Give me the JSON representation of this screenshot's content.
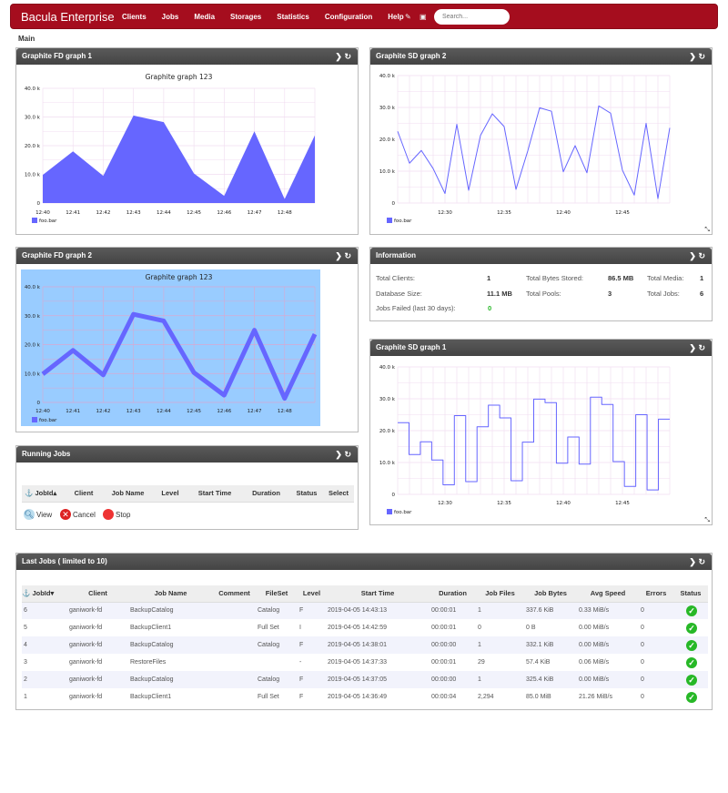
{
  "nav": {
    "brand": "Bacula Enterprise",
    "items": [
      "Clients",
      "Jobs",
      "Media",
      "Storages",
      "Statistics",
      "Configuration",
      "Help"
    ],
    "search_placeholder": "Search..."
  },
  "breadcrumb": "Main",
  "panels": {
    "fd1": "Graphite FD graph 1",
    "sd2": "Graphite SD graph 2",
    "fd2": "Graphite FD graph 2",
    "info": "Information",
    "running": "Running Jobs",
    "sd1": "Graphite SD graph 1",
    "last": "Last Jobs ( limited to 10)"
  },
  "info": {
    "total_clients_label": "Total Clients:",
    "total_clients": "1",
    "db_size_label": "Database Size:",
    "db_size": "11.1 MB",
    "failed_label": "Jobs Failed (last 30 days):",
    "failed": "0",
    "bytes_label": "Total Bytes Stored:",
    "bytes": "86.5 MB",
    "pools_label": "Total Pools:",
    "pools": "3",
    "media_label": "Total Media:",
    "media": "1",
    "jobs_label": "Total Jobs:",
    "jobs": "6"
  },
  "running": {
    "headers": [
      "JobId",
      "Client",
      "Job Name",
      "Level",
      "Start Time",
      "Duration",
      "Status",
      "Select"
    ],
    "actions": [
      "View",
      "Cancel",
      "Stop"
    ]
  },
  "last_jobs": {
    "headers": [
      "JobId",
      "Client",
      "Job Name",
      "Comment",
      "FileSet",
      "Level",
      "Start Time",
      "Duration",
      "Job Files",
      "Job Bytes",
      "Avg Speed",
      "Errors",
      "Status"
    ],
    "rows": [
      [
        "6",
        "ganiwork-fd",
        "BackupCatalog",
        "",
        "Catalog",
        "F",
        "2019-04-05 14:43:13",
        "00:00:01",
        "1",
        "337.6 KiB",
        "0.33 MiB/s",
        "0",
        "ok"
      ],
      [
        "5",
        "ganiwork-fd",
        "BackupClient1",
        "",
        "Full Set",
        "I",
        "2019-04-05 14:42:59",
        "00:00:01",
        "0",
        "0 B",
        "0.00 MiB/s",
        "0",
        "ok"
      ],
      [
        "4",
        "ganiwork-fd",
        "BackupCatalog",
        "",
        "Catalog",
        "F",
        "2019-04-05 14:38:01",
        "00:00:00",
        "1",
        "332.1 KiB",
        "0.00 MiB/s",
        "0",
        "ok"
      ],
      [
        "3",
        "ganiwork-fd",
        "RestoreFiles",
        "",
        "",
        "-",
        "2019-04-05 14:37:33",
        "00:00:01",
        "29",
        "57.4 KiB",
        "0.06 MiB/s",
        "0",
        "ok"
      ],
      [
        "2",
        "ganiwork-fd",
        "BackupCatalog",
        "",
        "Catalog",
        "F",
        "2019-04-05 14:37:05",
        "00:00:00",
        "1",
        "325.4 KiB",
        "0.00 MiB/s",
        "0",
        "ok"
      ],
      [
        "1",
        "ganiwork-fd",
        "BackupClient1",
        "",
        "Full Set",
        "F",
        "2019-04-05 14:36:49",
        "00:00:04",
        "2,294",
        "85.0 MiB",
        "21.26 MiB/s",
        "0",
        "ok"
      ]
    ]
  },
  "colors": {
    "brand": "#a50d1e",
    "series": "#6666ff",
    "fd2_bg": "#99ccff",
    "ok": "#27b827"
  },
  "chart_data": [
    {
      "id": "fd1",
      "type": "area",
      "title": "Graphite graph 123",
      "x": [
        "12:40",
        "12:41",
        "12:42",
        "12:43",
        "12:44",
        "12:45",
        "12:46",
        "12:47",
        "12:48",
        "12:49"
      ],
      "xticks": [
        "12:40",
        "12:41",
        "12:42",
        "12:43",
        "12:44",
        "12:45",
        "12:46",
        "12:47",
        "12:48"
      ],
      "values": [
        9800,
        18000,
        9500,
        30500,
        28200,
        10300,
        2500,
        25000,
        1400,
        23600
      ],
      "ylim": [
        0,
        40000
      ],
      "yticks": [
        "0",
        "10.0 k",
        "20.0 k",
        "30.0 k",
        "40.0 k"
      ],
      "series": [
        {
          "name": "foo.bar"
        }
      ],
      "grid": true,
      "legend": "bottom-left"
    },
    {
      "id": "sd2",
      "type": "line",
      "title": "",
      "x": [
        "12:26",
        "12:27",
        "12:28",
        "12:29",
        "12:30",
        "12:31",
        "12:32",
        "12:33",
        "12:34",
        "12:35",
        "12:36",
        "12:37",
        "12:38",
        "12:39",
        "12:40",
        "12:41",
        "12:42",
        "12:43",
        "12:44",
        "12:45",
        "12:46",
        "12:47",
        "12:48",
        "12:49"
      ],
      "xticks": [
        "12:30",
        "12:35",
        "12:40",
        "12:45"
      ],
      "values": [
        22500,
        12500,
        16500,
        10800,
        3000,
        24700,
        4000,
        21200,
        28000,
        24000,
        4300,
        16400,
        29900,
        28800,
        9800,
        18000,
        9500,
        30500,
        28200,
        10300,
        2500,
        25000,
        1400,
        23600
      ],
      "ylim": [
        0,
        40000
      ],
      "yticks": [
        "0",
        "10.0 k",
        "20.0 k",
        "30.0 k",
        "40.0 k"
      ],
      "series": [
        {
          "name": "foo.bar"
        }
      ],
      "grid": true,
      "legend": "bottom-left"
    },
    {
      "id": "fd2",
      "type": "line",
      "title": "Graphite graph 123",
      "x": [
        "12:40",
        "12:41",
        "12:42",
        "12:43",
        "12:44",
        "12:45",
        "12:46",
        "12:47",
        "12:48",
        "12:49"
      ],
      "xticks": [
        "12:40",
        "12:41",
        "12:42",
        "12:43",
        "12:44",
        "12:45",
        "12:46",
        "12:47",
        "12:48"
      ],
      "values": [
        9800,
        18000,
        9500,
        30500,
        28200,
        10300,
        2500,
        25000,
        1400,
        23600
      ],
      "ylim": [
        0,
        40000
      ],
      "yticks": [
        "0",
        "10.0 k",
        "20.0 k",
        "30.0 k",
        "40.0 k"
      ],
      "series": [
        {
          "name": "foo.bar"
        }
      ],
      "grid": true,
      "legend": "bottom-left"
    },
    {
      "id": "sd1",
      "type": "step",
      "title": "",
      "x": [
        "12:26",
        "12:27",
        "12:28",
        "12:29",
        "12:30",
        "12:31",
        "12:32",
        "12:33",
        "12:34",
        "12:35",
        "12:36",
        "12:37",
        "12:38",
        "12:39",
        "12:40",
        "12:41",
        "12:42",
        "12:43",
        "12:44",
        "12:45",
        "12:46",
        "12:47",
        "12:48",
        "12:49"
      ],
      "xticks": [
        "12:30",
        "12:35",
        "12:40",
        "12:45"
      ],
      "values": [
        22500,
        12500,
        16500,
        10800,
        3000,
        24700,
        4000,
        21200,
        28000,
        24000,
        4300,
        16400,
        29900,
        28800,
        9800,
        18000,
        9500,
        30500,
        28200,
        10300,
        2500,
        25000,
        1400,
        23600
      ],
      "ylim": [
        0,
        40000
      ],
      "yticks": [
        "0",
        "10.0 k",
        "20.0 k",
        "30.0 k",
        "40.0 k"
      ],
      "series": [
        {
          "name": "foo.bar"
        }
      ],
      "grid": true,
      "legend": "bottom-left"
    }
  ]
}
